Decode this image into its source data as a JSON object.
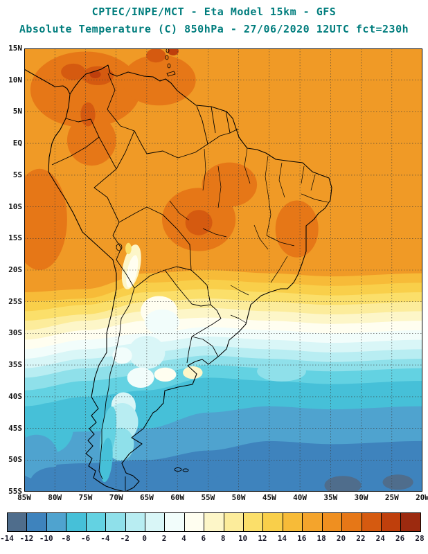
{
  "header": {
    "line1": "CPTEC/INPE/MCT -  Eta Model 15km - GFS",
    "line2": "Absolute Temperature (C) 850hPa - 27/06/2020 12UTC fct=230h",
    "title_color": "#007d7d"
  },
  "axes": {
    "lat_ticks": [
      "15N",
      "10N",
      "5N",
      "EQ",
      "5S",
      "10S",
      "15S",
      "20S",
      "25S",
      "30S",
      "35S",
      "40S",
      "45S",
      "50S",
      "55S"
    ],
    "lon_ticks": [
      "85W",
      "80W",
      "75W",
      "70W",
      "65W",
      "60W",
      "55W",
      "50W",
      "45W",
      "40W",
      "35W",
      "30W",
      "25W",
      "20W"
    ]
  },
  "colorbar": {
    "tick_labels": [
      "-14",
      "-12",
      "-10",
      "-8",
      "-6",
      "-4",
      "-2",
      "0",
      "2",
      "4",
      "6",
      "8",
      "10",
      "12",
      "14",
      "16",
      "18",
      "20",
      "22",
      "24",
      "26",
      "28"
    ],
    "segment_colors": [
      "#4f6d8c",
      "#3e83bd",
      "#4fa3cf",
      "#46c0d8",
      "#63d2e2",
      "#8fe0ea",
      "#b8edf2",
      "#d9f6f7",
      "#f2fdfb",
      "#fffef0",
      "#fdf6c8",
      "#fcec9b",
      "#fbdf6a",
      "#f9cf4a",
      "#f7bb38",
      "#f4a42c",
      "#ef8f20",
      "#e67717",
      "#d55a10",
      "#bf3f0c",
      "#9c2a0f"
    ],
    "unit": "C"
  },
  "chart_data": {
    "type": "filled-contour-map",
    "title": "Absolute Temperature (C) 850hPa",
    "model": "Eta Model 15km - GFS",
    "run": "27/06/2020 12UTC",
    "forecast": "fct=230h",
    "region": {
      "lon_min": -85,
      "lon_max": -20,
      "lat_min": -55,
      "lat_max": 15
    },
    "levels_c": [
      -14,
      -12,
      -10,
      -8,
      -6,
      -4,
      -2,
      0,
      2,
      4,
      6,
      8,
      10,
      12,
      14,
      16,
      18,
      20,
      22,
      24,
      26,
      28
    ],
    "base_color": "#f09a26",
    "boundary_lons": [
      -85,
      -75,
      -65,
      -55,
      -45,
      -35,
      -20
    ],
    "bands": [
      {
        "range": "14..16",
        "color": "#f7bb38",
        "lats": [
          -23.5,
          -23,
          -20.5,
          -20,
          -20.5,
          -21,
          -20.5
        ]
      },
      {
        "range": "12..14",
        "color": "#f9cf4a",
        "lats": [
          -25,
          -24.5,
          -22,
          -21.5,
          -22,
          -22.5,
          -22
        ]
      },
      {
        "range": "10..12",
        "color": "#fbdf6a",
        "lats": [
          -26.5,
          -25.5,
          -23.5,
          -23,
          -23.5,
          -24,
          -23.5
        ]
      },
      {
        "range": "8..10",
        "color": "#fcec9b",
        "lats": [
          -28,
          -27,
          -25,
          -24.5,
          -25,
          -25.5,
          -25
        ]
      },
      {
        "range": "6..8",
        "color": "#fdf6c8",
        "lats": [
          -29.5,
          -28,
          -26.5,
          -26,
          -26.5,
          -27,
          -26.5
        ]
      },
      {
        "range": "4..6",
        "color": "#fffef0",
        "lats": [
          -31,
          -29.5,
          -28,
          -27.5,
          -28,
          -28.5,
          -28
        ]
      },
      {
        "range": "2..4",
        "color": "#f2fdfb",
        "lats": [
          -32.5,
          -31,
          -30,
          -29,
          -29.5,
          -30,
          -29.5
        ]
      },
      {
        "range": "0..2",
        "color": "#d9f6f7",
        "lats": [
          -34,
          -32.5,
          -31.5,
          -30.5,
          -31,
          -31.5,
          -31
        ]
      },
      {
        "range": "-2..0",
        "color": "#b8edf2",
        "lats": [
          -35.5,
          -34,
          -33,
          -32,
          -32.5,
          -33,
          -32.5
        ]
      },
      {
        "range": "-4..-2",
        "color": "#8fe0ea",
        "lats": [
          -37,
          -35.5,
          -34.5,
          -33.5,
          -34,
          -34.5,
          -34
        ]
      },
      {
        "range": "-6..-4",
        "color": "#63d2e2",
        "lats": [
          -39,
          -37.5,
          -36.5,
          -35,
          -35.5,
          -36,
          -35.5
        ]
      },
      {
        "range": "-8..-6",
        "color": "#46c0d8",
        "lats": [
          -41.5,
          -40,
          -39,
          -37,
          -37.5,
          -38,
          -37.5
        ]
      },
      {
        "range": "-10..-8",
        "color": "#4fa3cf",
        "lats": [
          -46,
          -45.5,
          -45,
          -42.5,
          -41.5,
          -42,
          -41.5
        ]
      },
      {
        "range": "-12..-10",
        "color": "#3e83bd",
        "lats": [
          -51,
          -50.5,
          -50,
          -48.5,
          -47,
          -47.5,
          -47
        ]
      }
    ],
    "warm_spots": [
      [
        -75,
        8.5,
        9,
        6,
        0,
        "#e67717"
      ],
      [
        -63,
        10,
        6,
        4,
        0,
        "#e67717"
      ],
      [
        -74,
        0.5,
        4,
        4,
        0,
        "#e67717"
      ],
      [
        -82.5,
        -12,
        4.5,
        8,
        0,
        "#e67717"
      ],
      [
        -56.5,
        -12,
        6,
        5,
        0,
        "#e67717"
      ],
      [
        -40.5,
        -13.5,
        3.5,
        4.5,
        0,
        "#e67717"
      ],
      [
        -51.5,
        -6.5,
        4.5,
        3.5,
        0,
        "#e67717"
      ],
      [
        -73,
        10.7,
        2.6,
        1.5,
        0,
        "#d55a10"
      ],
      [
        -63.5,
        13.9,
        1.6,
        1.1,
        0,
        "#d55a10"
      ],
      [
        -77,
        11.3,
        2,
        1.3,
        0,
        "#d55a10"
      ],
      [
        -74.6,
        4.6,
        1.2,
        1.9,
        0,
        "#d55a10"
      ],
      [
        -56.5,
        -12.5,
        2.2,
        2,
        0,
        "#d55a10"
      ],
      [
        -60.7,
        14.6,
        0.9,
        0.7,
        0,
        "#bf3f0c"
      ],
      [
        -73.4,
        10.9,
        0.9,
        0.6,
        0,
        "#bf3f0c"
      ]
    ],
    "anomaly_spots": [
      [
        -67.5,
        -19.5,
        1.4,
        3.6,
        12,
        "#fdf6c8"
      ],
      [
        -67.4,
        -20.2,
        0.8,
        2.6,
        12,
        "#fffef0"
      ],
      [
        -68,
        -16.6,
        0.5,
        0.9,
        0,
        "#fbdf6a"
      ],
      [
        -63,
        -26.5,
        3,
        2.4,
        0,
        "#fffef0"
      ],
      [
        -62.5,
        -28.2,
        2.8,
        2,
        0,
        "#f2fdfb"
      ],
      [
        -65,
        -33,
        3,
        2.6,
        0,
        "#d9f6f7"
      ],
      [
        -69,
        -33.5,
        1.6,
        1.3,
        0,
        "#f2fdfb"
      ],
      [
        -66,
        -37,
        2.2,
        1.6,
        0,
        "#f2fdfb"
      ],
      [
        -57.5,
        -36.2,
        1.6,
        1,
        0,
        "#fdf6c8"
      ],
      [
        -62,
        -36.5,
        1.8,
        1.1,
        0,
        "#fffef0"
      ],
      [
        -43,
        -36,
        4,
        1.6,
        0,
        "#8fe0ea"
      ],
      [
        -68.8,
        -41.5,
        2,
        2.2,
        0,
        "#d9f6f7"
      ],
      [
        -69,
        -44,
        2.6,
        3,
        0,
        "#b8edf2"
      ],
      [
        -69.3,
        -47.5,
        2.2,
        2.6,
        0,
        "#8fe0ea"
      ],
      [
        -71.3,
        -46,
        1.2,
        4.5,
        8,
        "#63d2e2"
      ],
      [
        -71.6,
        -50,
        1,
        3.5,
        5,
        "#46c0d8"
      ],
      [
        -81,
        -45,
        4,
        4,
        0,
        "#46c0d8"
      ],
      [
        -83,
        -49.5,
        3.5,
        3.5,
        0,
        "#4fa3cf"
      ],
      [
        -80,
        -53.5,
        4,
        2.4,
        0,
        "#3e83bd"
      ],
      [
        -38,
        -52,
        5,
        2.4,
        0,
        "#3e83bd"
      ],
      [
        -28,
        -49.5,
        4,
        2,
        0,
        "#3e83bd"
      ],
      [
        -33,
        -54,
        3,
        1.5,
        0,
        "#4f6d8c"
      ],
      [
        -24,
        -53.5,
        2.5,
        1.2,
        0,
        "#4f6d8c"
      ],
      [
        -52,
        -54,
        3,
        1.5,
        0,
        "#3e83bd"
      ]
    ]
  }
}
